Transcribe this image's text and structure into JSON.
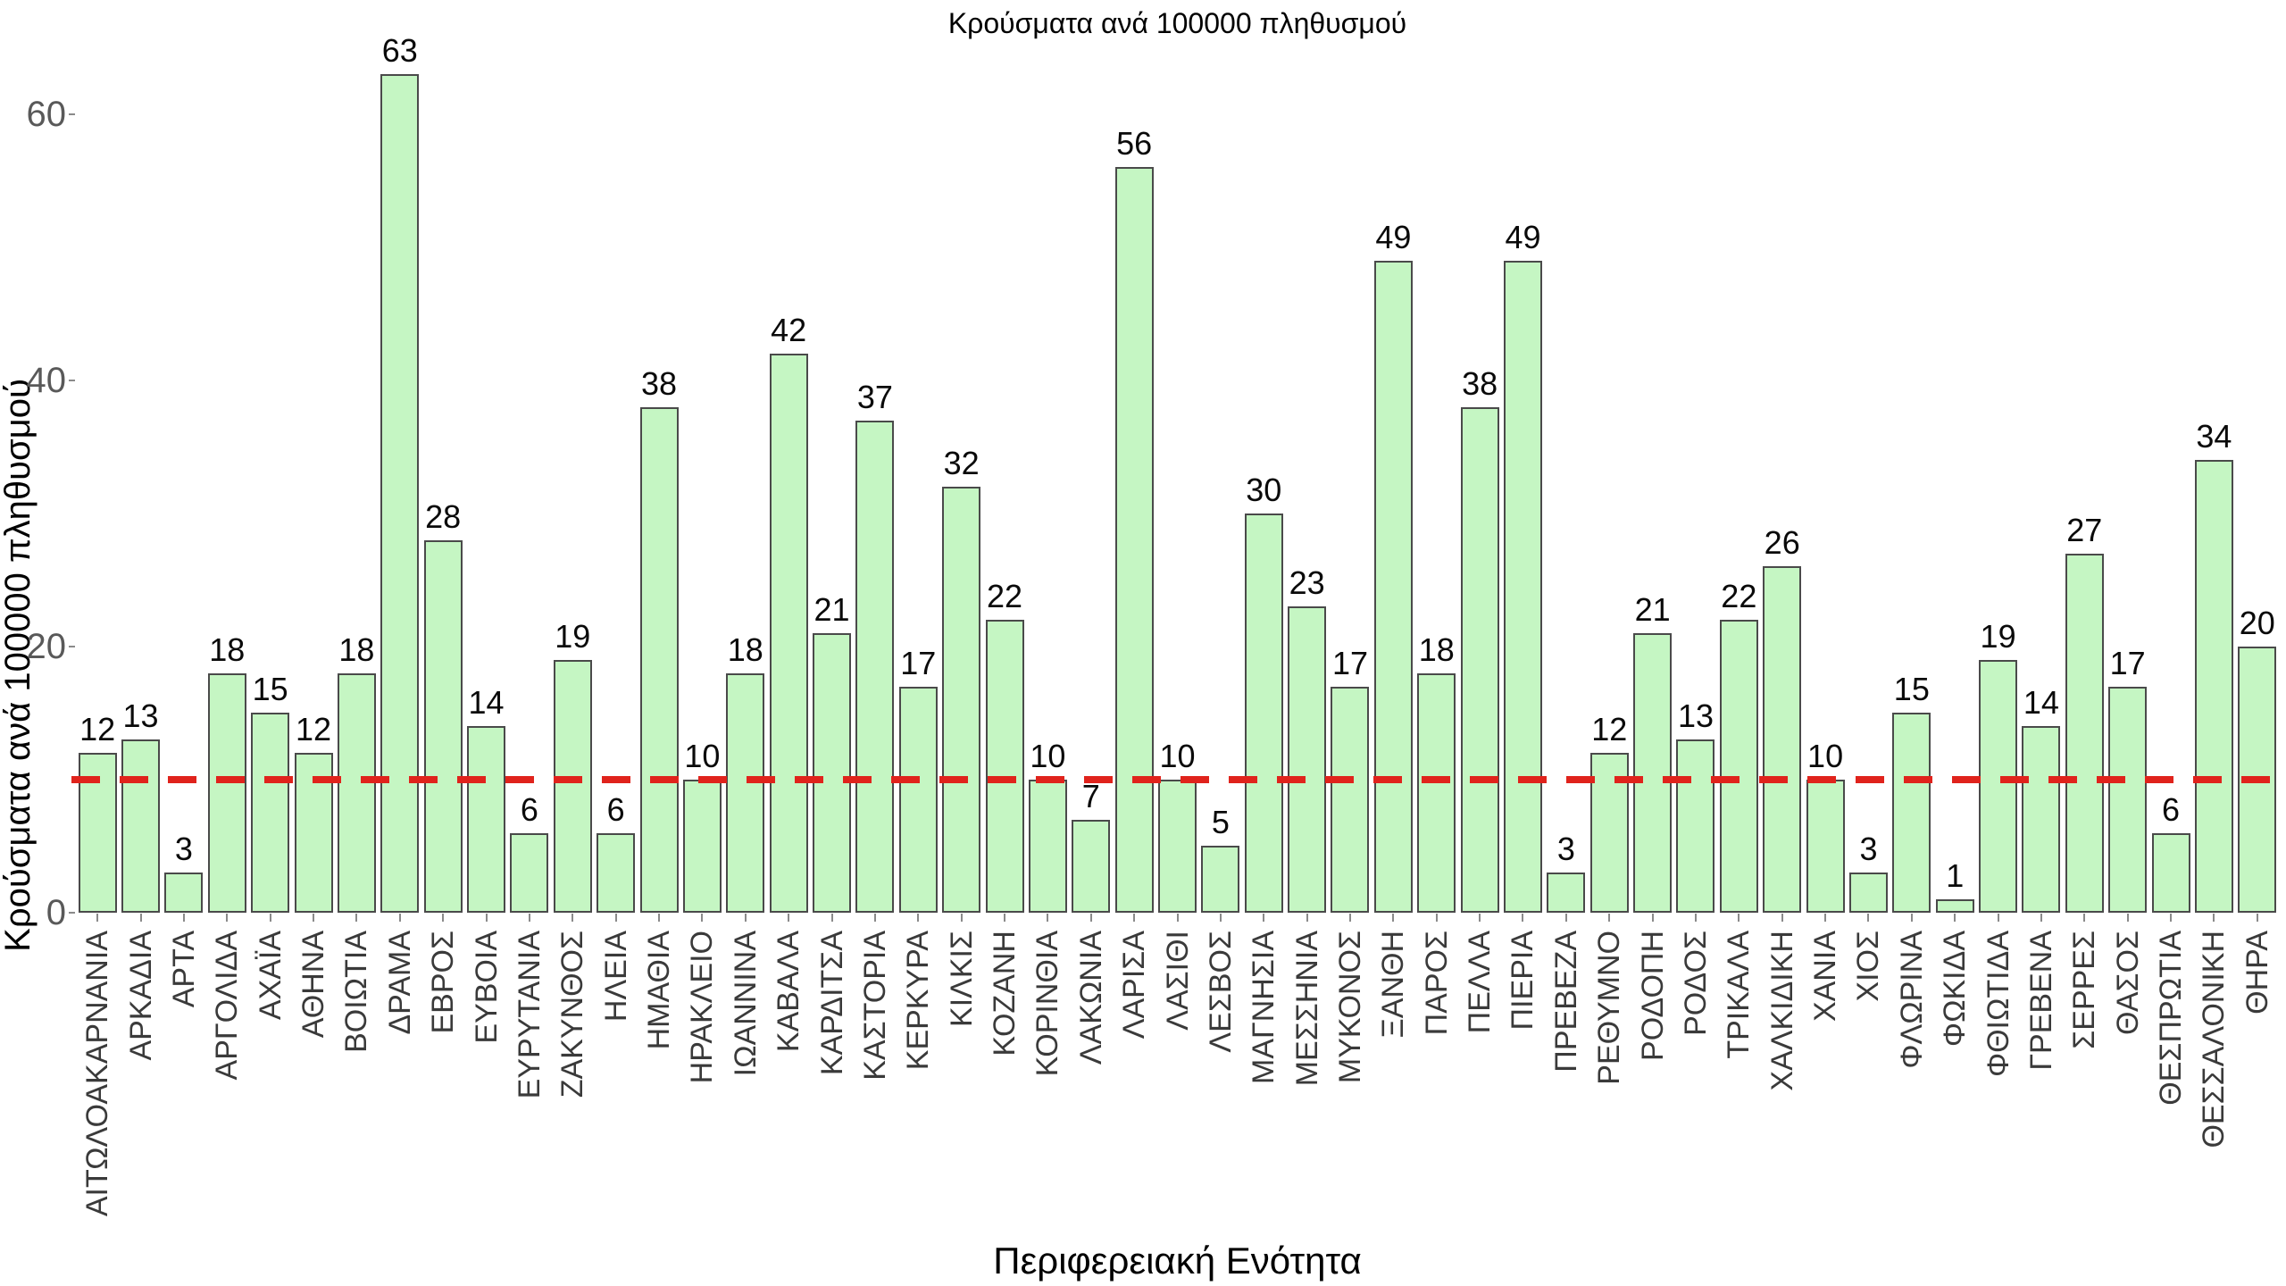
{
  "chart_data": {
    "type": "bar",
    "title": "Κρούσματα ανά 100000 πληθυσμού",
    "xlabel": "Περιφερειακή Ενότητα",
    "ylabel": "Κρούσματα ανά 100000 πληθυσμού",
    "categories": [
      "ΑΙΤΩΛΟΑΚΑΡΝΑΝΙΑ",
      "ΑΡΚΑΔΙΑ",
      "ΑΡΤΑ",
      "ΑΡΓΟΛΙΔΑ",
      "ΑΧΑΪΑ",
      "ΑΘΗΝΑ",
      "ΒΟΙΩΤΙΑ",
      "ΔΡΑΜΑ",
      "ΕΒΡΟΣ",
      "ΕΥΒΟΙΑ",
      "ΕΥΡΥΤΑΝΙΑ",
      "ΖΑΚΥΝΘΟΣ",
      "ΗΛΕΙΑ",
      "ΗΜΑΘΙΑ",
      "ΗΡΑΚΛΕΙΟ",
      "ΙΩΑΝΝΙΝΑ",
      "ΚΑΒΑΛΑ",
      "ΚΑΡΔΙΤΣΑ",
      "ΚΑΣΤΟΡΙΑ",
      "ΚΕΡΚΥΡΑ",
      "ΚΙΛΚΙΣ",
      "ΚΟΖΑΝΗ",
      "ΚΟΡΙΝΘΙΑ",
      "ΛΑΚΩΝΙΑ",
      "ΛΑΡΙΣΑ",
      "ΛΑΣΙΘΙ",
      "ΛΕΣΒΟΣ",
      "ΜΑΓΝΗΣΙΑ",
      "ΜΕΣΣΗΝΙΑ",
      "ΜΥΚΟΝΟΣ",
      "ΞΑΝΘΗ",
      "ΠΑΡΟΣ",
      "ΠΕΛΛΑ",
      "ΠΙΕΡΙΑ",
      "ΠΡΕΒΕΖΑ",
      "ΡΕΘΥΜΝΟ",
      "ΡΟΔΟΠΗ",
      "ΡΟΔΟΣ",
      "ΤΡΙΚΑΛΑ",
      "ΧΑΛΚΙΔΙΚΗ",
      "ΧΑΝΙΑ",
      "ΧΙΟΣ",
      "ΦΛΩΡΙΝΑ",
      "ΦΩΚΙΔΑ",
      "ΦΘΙΩΤΙΔΑ",
      "ΓΡΕΒΕΝΑ",
      "ΣΕΡΡΕΣ",
      "ΘΑΣΟΣ",
      "ΘΕΣΠΡΩΤΙΑ",
      "ΘΕΣΣΑΛΟΝΙΚΗ",
      "ΘΗΡΑ"
    ],
    "values": [
      12,
      13,
      3,
      18,
      15,
      12,
      18,
      63,
      28,
      14,
      6,
      19,
      6,
      38,
      10,
      18,
      42,
      21,
      37,
      17,
      32,
      22,
      10,
      7,
      56,
      10,
      5,
      30,
      23,
      17,
      49,
      18,
      38,
      49,
      3,
      12,
      21,
      13,
      22,
      26,
      10,
      3,
      15,
      1,
      19,
      14,
      27,
      17,
      6,
      34,
      20
    ],
    "yticks": [
      0,
      20,
      40,
      60
    ],
    "ylim": [
      0,
      67
    ],
    "grid": false,
    "legend": null,
    "reference_line": {
      "y": 10,
      "style": "dashed",
      "color": "#e0231c"
    },
    "bar_fill": "#c5f6c3",
    "bar_border": "#4a4a4a",
    "tick_text_color": "#595959",
    "xtick_text_color": "#3a3a3a"
  }
}
